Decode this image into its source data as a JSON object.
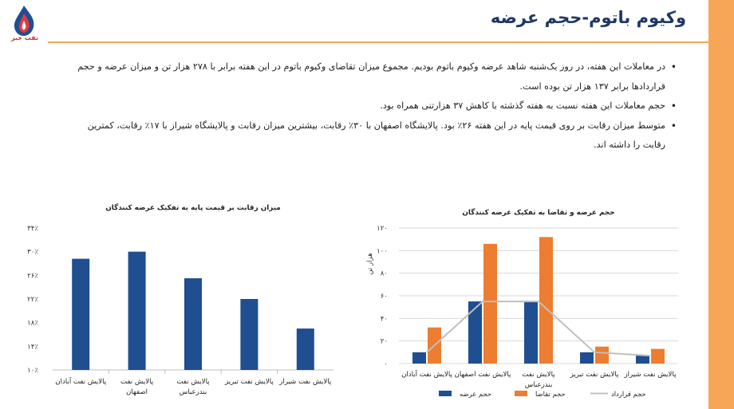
{
  "header": {
    "title": "وکیوم باتوم-حجم عرضه",
    "logo_text": "نفت خبر"
  },
  "bullets": [
    "در معاملات این هفته، در روز یک‌شنبه شاهد عرضه وکیوم باتوم بودیم. مجموع میزان تقاضای وکیوم باتوم در این هفته برابر با ۲۷۸ هزار تن و میزان عرضه و حجم قراردادها برابر ۱۳۷ هزار تن بوده است.",
    "حجم معاملات این هفته نسبت به هفته گذشته با کاهش ۳۷ هزارتنی همراه بود.",
    "متوسط میزان رقابت بر روی قیمت پایه در این هفته ۲۶٪ بود. پالایشگاه اصفهان با ۳۰٪ رقابت، بیشترین میزان رقابت و پالایشگاه شیراز با ۱۷٪ رقابت، کمترین رقابت را داشته اند."
  ],
  "colors": {
    "blue": "#1f4e91",
    "orange": "#ed7d31",
    "gray": "#bfbfbf",
    "accent": "#f7a557",
    "title": "#1f3864"
  },
  "chart_data": [
    {
      "type": "bar",
      "title": "میزان رقابت بر قیمت پایه به تفکیک عرضه کنندگان",
      "categories": [
        [
          "پالایش نفت آبادان"
        ],
        [
          "پالایش نفت",
          "اصفهان"
        ],
        [
          "پالایش نفت",
          "بندرعباس"
        ],
        [
          "پالایش نفت تبریز"
        ],
        [
          "پالایش نفت شیراز"
        ]
      ],
      "values": [
        28.8,
        30,
        25.5,
        22,
        17
      ],
      "ylim": [
        10,
        34
      ],
      "yticks": [
        10,
        14,
        18,
        22,
        26,
        30,
        34
      ],
      "ytick_labels": [
        "۱۰٪",
        "۱۴٪",
        "۱۸٪",
        "۲۲٪",
        "۲۶٪",
        "۳۰٪",
        "۳۴٪"
      ]
    },
    {
      "type": "bar",
      "title": "حجم عرضه و تقاضا به تفکیک عرضه کنندگان",
      "ylabel": "هزار تن",
      "categories": [
        [
          "پالایش نفت آبادان"
        ],
        [
          "پالایش نفت اصفهان"
        ],
        [
          "پالایش نفت",
          "بندرعباس"
        ],
        [
          "پالایش نفت تبریز"
        ],
        [
          "پالایش نفت شیراز"
        ]
      ],
      "series": [
        {
          "name": "حجم عرضه",
          "kind": "bar",
          "values": [
            10,
            55,
            55,
            10,
            7
          ]
        },
        {
          "name": "حجم تقاضا",
          "kind": "bar",
          "values": [
            32,
            106,
            112,
            15,
            13
          ]
        },
        {
          "name": "حجم قرارداد",
          "kind": "line",
          "values": [
            10,
            55,
            55,
            10,
            7
          ]
        }
      ],
      "ylim": [
        0,
        120
      ],
      "yticks": [
        0,
        20,
        40,
        60,
        80,
        100,
        120
      ],
      "ytick_labels": [
        "۰",
        "۲۰",
        "۴۰",
        "۶۰",
        "۸۰",
        "۱۰۰",
        "۱۲۰"
      ]
    }
  ]
}
